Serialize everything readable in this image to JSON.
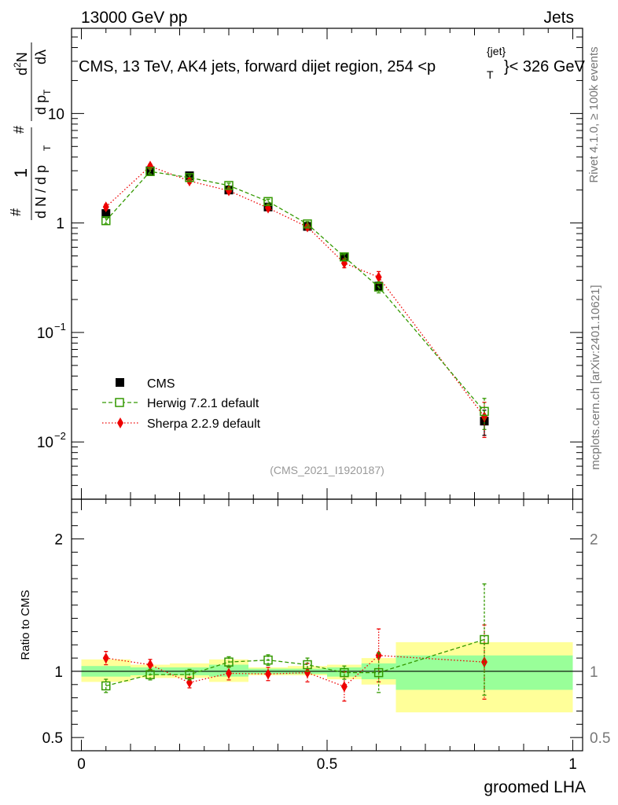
{
  "header": {
    "left": "13000 GeV pp",
    "right": "Jets"
  },
  "sidebar": {
    "rivet": "Rivet 4.1.0, ≥ 100k events",
    "mcplots": "mcplots.cern.ch [arXiv:2401.10621]"
  },
  "chart_data": {
    "type": "scatter",
    "title": "CMS, 13 TeV, AK4 jets, forward dijet region, 254 <p",
    "title_sup": "{jet}",
    "title_sub": "T",
    "title_end": "}< 326 GeV",
    "analysis_id": "(CMS_2021_I1920187)",
    "xlabel": "groomed LHA",
    "xlim": [
      -0.02,
      1.02
    ],
    "x_ticks": [
      {
        "v": 0,
        "label": "0"
      },
      {
        "v": 0.5,
        "label": "0.5"
      },
      {
        "v": 1,
        "label": "1"
      }
    ],
    "upper": {
      "yscale": "log",
      "ylim": [
        0.003,
        60
      ],
      "y_tick_labels": [
        {
          "v": 0.01,
          "base": "10",
          "exp": "−2"
        },
        {
          "v": 0.1,
          "base": "10",
          "exp": "−1"
        },
        {
          "v": 1,
          "base": "1",
          "exp": ""
        },
        {
          "v": 10,
          "base": "10",
          "exp": ""
        }
      ],
      "ylabel": {
        "hash": "#",
        "one": "1",
        "dN": "d N / d p",
        "T": "T",
        "hash2": "#",
        "d2N": "d",
        "two": "2",
        "N": "N",
        "dpT": "d p",
        "T2": "T",
        "dlam": "dλ"
      },
      "legend": [
        {
          "name": "CMS",
          "color": "#000000"
        },
        {
          "name": "Herwig 7.2.1 default",
          "color": "#339900"
        },
        {
          "name": "Sherpa 2.2.9 default",
          "color": "#ee0000"
        }
      ],
      "series": [
        {
          "name": "CMS",
          "color": "#000000",
          "x": [
            0.05,
            0.14,
            0.22,
            0.3,
            0.38,
            0.46,
            0.535,
            0.605,
            0.82
          ],
          "y": [
            1.22,
            3.0,
            2.7,
            2.0,
            1.4,
            0.93,
            0.49,
            0.265,
            0.0155
          ],
          "err": [
            0.08,
            0.15,
            0.12,
            0.1,
            0.07,
            0.05,
            0.03,
            0.02,
            0.004
          ]
        },
        {
          "name": "Herwig 7.2.1 default",
          "color": "#339900",
          "x": [
            0.05,
            0.14,
            0.22,
            0.3,
            0.38,
            0.46,
            0.535,
            0.605,
            0.82
          ],
          "y": [
            1.05,
            2.95,
            2.6,
            2.2,
            1.57,
            0.98,
            0.49,
            0.26,
            0.019
          ],
          "err": [
            0.07,
            0.15,
            0.13,
            0.11,
            0.08,
            0.05,
            0.03,
            0.03,
            0.006
          ]
        },
        {
          "name": "Sherpa 2.2.9 default",
          "color": "#ee0000",
          "x": [
            0.05,
            0.14,
            0.22,
            0.3,
            0.38,
            0.46,
            0.535,
            0.605,
            0.82
          ],
          "y": [
            1.4,
            3.3,
            2.42,
            1.97,
            1.37,
            0.92,
            0.43,
            0.32,
            0.017
          ],
          "err": [
            0.08,
            0.16,
            0.12,
            0.1,
            0.07,
            0.05,
            0.04,
            0.04,
            0.006
          ]
        }
      ]
    },
    "ratio": {
      "ylabel": "Ratio to CMS",
      "ylim": [
        0.4,
        2.3
      ],
      "y_tick_labels": [
        {
          "v": 0.5,
          "label": "0.5"
        },
        {
          "v": 1,
          "label": "1"
        },
        {
          "v": 2,
          "label": "2"
        }
      ],
      "bins": [
        {
          "x0": 0.0,
          "x1": 0.1,
          "stat": [
            0.96,
            1.04
          ],
          "total": [
            0.92,
            1.09
          ]
        },
        {
          "x0": 0.1,
          "x1": 0.18,
          "stat": [
            0.97,
            1.03
          ],
          "total": [
            0.95,
            1.05
          ]
        },
        {
          "x0": 0.18,
          "x1": 0.26,
          "stat": [
            0.97,
            1.03
          ],
          "total": [
            0.95,
            1.06
          ]
        },
        {
          "x0": 0.26,
          "x1": 0.34,
          "stat": [
            0.96,
            1.05
          ],
          "total": [
            0.92,
            1.09
          ]
        },
        {
          "x0": 0.34,
          "x1": 0.42,
          "stat": [
            0.98,
            1.02
          ],
          "total": [
            0.97,
            1.03
          ]
        },
        {
          "x0": 0.42,
          "x1": 0.5,
          "stat": [
            0.98,
            1.02
          ],
          "total": [
            0.97,
            1.04
          ]
        },
        {
          "x0": 0.5,
          "x1": 0.57,
          "stat": [
            0.96,
            1.03
          ],
          "total": [
            0.94,
            1.05
          ]
        },
        {
          "x0": 0.57,
          "x1": 0.64,
          "stat": [
            0.94,
            1.06
          ],
          "total": [
            0.9,
            1.1
          ]
        },
        {
          "x0": 0.64,
          "x1": 1.0,
          "stat": [
            0.86,
            1.12
          ],
          "total": [
            0.69,
            1.22
          ]
        }
      ],
      "series": [
        {
          "name": "Herwig 7.2.1 default",
          "color": "#339900",
          "x": [
            0.05,
            0.14,
            0.22,
            0.3,
            0.38,
            0.46,
            0.535,
            0.605,
            0.82
          ],
          "y": [
            0.89,
            0.975,
            0.975,
            1.07,
            1.085,
            1.05,
            0.99,
            0.99,
            1.24
          ],
          "err": [
            0.05,
            0.04,
            0.04,
            0.04,
            0.04,
            0.05,
            0.05,
            0.15,
            0.42
          ]
        },
        {
          "name": "Sherpa 2.2.9 default",
          "color": "#ee0000",
          "x": [
            0.05,
            0.14,
            0.22,
            0.3,
            0.38,
            0.46,
            0.535,
            0.605,
            0.82
          ],
          "y": [
            1.1,
            1.05,
            0.915,
            0.985,
            0.98,
            0.99,
            0.885,
            1.12,
            1.07
          ],
          "err": [
            0.05,
            0.04,
            0.04,
            0.05,
            0.05,
            0.07,
            0.11,
            0.2,
            0.28
          ]
        }
      ]
    }
  }
}
